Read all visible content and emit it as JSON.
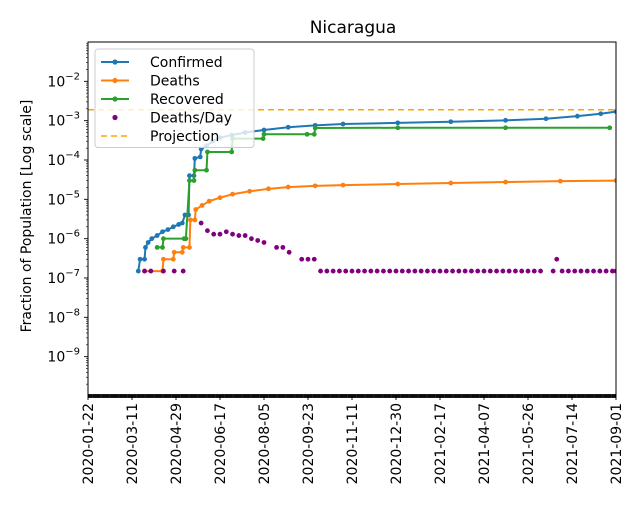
{
  "chart_data": {
    "type": "line",
    "title": "Nicaragua",
    "xlabel": "",
    "ylabel": "Fraction of Population [Log scale]",
    "yscale": "log",
    "ylim": [
      1e-10,
      0.1
    ],
    "xlim": [
      "2020-01-22",
      "2021-09-01"
    ],
    "y_ticks": [
      {
        "value": 1e-09,
        "base": "10",
        "exp": "−9"
      },
      {
        "value": 1e-08,
        "base": "10",
        "exp": "−8"
      },
      {
        "value": 1e-07,
        "base": "10",
        "exp": "−7"
      },
      {
        "value": 1e-06,
        "base": "10",
        "exp": "−6"
      },
      {
        "value": 1e-05,
        "base": "10",
        "exp": "−5"
      },
      {
        "value": 0.0001,
        "base": "10",
        "exp": "−4"
      },
      {
        "value": 0.001,
        "base": "10",
        "exp": "−3"
      },
      {
        "value": 0.01,
        "base": "10",
        "exp": "−2"
      }
    ],
    "x_ticks": [
      "2020-01-22",
      "2020-03-11",
      "2020-04-29",
      "2020-06-17",
      "2020-08-05",
      "2020-09-23",
      "2020-11-11",
      "2020-12-30",
      "2021-02-17",
      "2021-04-07",
      "2021-05-26",
      "2021-07-14",
      "2021-09-01"
    ],
    "legend": {
      "position": "top-left",
      "entries": [
        {
          "label": "Confirmed",
          "color": "#1f77b4",
          "style": "line-marker"
        },
        {
          "label": "Deaths",
          "color": "#ff7f0e",
          "style": "line-marker"
        },
        {
          "label": "Recovered",
          "color": "#2ca02c",
          "style": "line-marker"
        },
        {
          "label": "Deaths/Day",
          "color": "#800080",
          "style": "marker"
        },
        {
          "label": "Projection",
          "color": "#ffa500",
          "style": "dashed"
        }
      ]
    },
    "projection": {
      "name": "Projection",
      "value": 0.0019,
      "color": "#ffa500"
    },
    "series": [
      {
        "name": "Confirmed",
        "color": "#1f77b4",
        "points": [
          [
            "2020-03-18",
            1.5e-07
          ],
          [
            "2020-03-20",
            3e-07
          ],
          [
            "2020-03-25",
            3e-07
          ],
          [
            "2020-03-26",
            6e-07
          ],
          [
            "2020-03-29",
            8e-07
          ],
          [
            "2020-04-02",
            1e-06
          ],
          [
            "2020-04-08",
            1.2e-06
          ],
          [
            "2020-04-14",
            1.5e-06
          ],
          [
            "2020-04-20",
            1.7e-06
          ],
          [
            "2020-04-26",
            2e-06
          ],
          [
            "2020-05-02",
            2.3e-06
          ],
          [
            "2020-05-06",
            2.5e-06
          ],
          [
            "2020-05-09",
            4e-06
          ],
          [
            "2020-05-13",
            4e-06
          ],
          [
            "2020-05-14",
            4e-05
          ],
          [
            "2020-05-19",
            4e-05
          ],
          [
            "2020-05-20",
            0.00011
          ],
          [
            "2020-05-26",
            0.00012
          ],
          [
            "2020-05-27",
            0.00019
          ],
          [
            "2020-06-02",
            0.00023
          ],
          [
            "2020-06-09",
            0.0003
          ],
          [
            "2020-06-17",
            0.00037
          ],
          [
            "2020-06-30",
            0.00043
          ],
          [
            "2020-07-15",
            0.0005
          ],
          [
            "2020-08-05",
            0.00058
          ],
          [
            "2020-09-01",
            0.00068
          ],
          [
            "2020-10-01",
            0.00076
          ],
          [
            "2020-11-01",
            0.00082
          ],
          [
            "2021-01-01",
            0.00088
          ],
          [
            "2021-03-01",
            0.00094
          ],
          [
            "2021-05-01",
            0.00102
          ],
          [
            "2021-06-15",
            0.00112
          ],
          [
            "2021-07-20",
            0.0013
          ],
          [
            "2021-08-15",
            0.0015
          ],
          [
            "2021-09-01",
            0.0017
          ]
        ]
      },
      {
        "name": "Deaths",
        "color": "#ff7f0e",
        "points": [
          [
            "2020-03-25",
            1.5e-07
          ],
          [
            "2020-04-14",
            1.5e-07
          ],
          [
            "2020-04-15",
            3e-07
          ],
          [
            "2020-04-26",
            3e-07
          ],
          [
            "2020-04-27",
            4.5e-07
          ],
          [
            "2020-05-06",
            4.5e-07
          ],
          [
            "2020-05-07",
            6e-07
          ],
          [
            "2020-05-14",
            6e-07
          ],
          [
            "2020-05-15",
            3e-06
          ],
          [
            "2020-05-20",
            3e-06
          ],
          [
            "2020-05-21",
            5.5e-06
          ],
          [
            "2020-05-28",
            7e-06
          ],
          [
            "2020-06-05",
            9e-06
          ],
          [
            "2020-06-17",
            1.1e-05
          ],
          [
            "2020-07-01",
            1.35e-05
          ],
          [
            "2020-07-20",
            1.6e-05
          ],
          [
            "2020-08-10",
            1.85e-05
          ],
          [
            "2020-09-01",
            2.05e-05
          ],
          [
            "2020-10-01",
            2.2e-05
          ],
          [
            "2020-11-01",
            2.3e-05
          ],
          [
            "2021-01-01",
            2.45e-05
          ],
          [
            "2021-03-01",
            2.6e-05
          ],
          [
            "2021-05-01",
            2.75e-05
          ],
          [
            "2021-07-01",
            2.9e-05
          ],
          [
            "2021-09-01",
            3e-05
          ]
        ]
      },
      {
        "name": "Recovered",
        "color": "#2ca02c",
        "points": [
          [
            "2020-04-08",
            6e-07
          ],
          [
            "2020-04-14",
            6e-07
          ],
          [
            "2020-04-15",
            1e-06
          ],
          [
            "2020-05-08",
            1e-06
          ],
          [
            "2020-05-10",
            1e-06
          ],
          [
            "2020-05-14",
            3e-05
          ],
          [
            "2020-05-19",
            3e-05
          ],
          [
            "2020-05-20",
            5.5e-05
          ],
          [
            "2020-06-02",
            5.5e-05
          ],
          [
            "2020-06-03",
            0.00016
          ],
          [
            "2020-06-30",
            0.00016
          ],
          [
            "2020-07-01",
            0.00035
          ],
          [
            "2020-08-04",
            0.00035
          ],
          [
            "2020-08-05",
            0.00045
          ],
          [
            "2020-09-22",
            0.00045
          ],
          [
            "2020-09-30",
            0.00045
          ],
          [
            "2020-10-01",
            0.00065
          ],
          [
            "2021-01-01",
            0.00066
          ],
          [
            "2021-05-01",
            0.00066
          ],
          [
            "2021-08-25",
            0.00066
          ]
        ]
      },
      {
        "name": "Deaths/Day",
        "color": "#800080",
        "points": [
          [
            "2020-03-25",
            1.5e-07
          ],
          [
            "2020-04-01",
            1.5e-07
          ],
          [
            "2020-04-15",
            1.5e-07
          ],
          [
            "2020-04-27",
            1.5e-07
          ],
          [
            "2020-05-07",
            1.5e-07
          ],
          [
            "2020-05-27",
            2.5e-06
          ],
          [
            "2020-06-03",
            1.6e-06
          ],
          [
            "2020-06-10",
            1.3e-06
          ],
          [
            "2020-06-17",
            1.3e-06
          ],
          [
            "2020-06-24",
            1.5e-06
          ],
          [
            "2020-07-01",
            1.3e-06
          ],
          [
            "2020-07-08",
            1.2e-06
          ],
          [
            "2020-07-15",
            1.2e-06
          ],
          [
            "2020-07-22",
            1e-06
          ],
          [
            "2020-07-29",
            9e-07
          ],
          [
            "2020-08-05",
            8e-07
          ],
          [
            "2020-08-19",
            6e-07
          ],
          [
            "2020-08-26",
            6e-07
          ],
          [
            "2020-09-02",
            4.5e-07
          ],
          [
            "2020-09-16",
            3e-07
          ],
          [
            "2020-09-23",
            3e-07
          ],
          [
            "2020-09-30",
            3e-07
          ],
          [
            "2020-10-07",
            1.5e-07
          ],
          [
            "2020-10-14",
            1.5e-07
          ],
          [
            "2020-10-21",
            1.5e-07
          ],
          [
            "2020-10-28",
            1.5e-07
          ],
          [
            "2020-11-04",
            1.5e-07
          ],
          [
            "2020-11-11",
            1.5e-07
          ],
          [
            "2020-11-18",
            1.5e-07
          ],
          [
            "2020-11-25",
            1.5e-07
          ],
          [
            "2020-12-02",
            1.5e-07
          ],
          [
            "2020-12-09",
            1.5e-07
          ],
          [
            "2020-12-16",
            1.5e-07
          ],
          [
            "2020-12-23",
            1.5e-07
          ],
          [
            "2020-12-30",
            1.5e-07
          ],
          [
            "2021-01-06",
            1.5e-07
          ],
          [
            "2021-01-13",
            1.5e-07
          ],
          [
            "2021-01-20",
            1.5e-07
          ],
          [
            "2021-01-27",
            1.5e-07
          ],
          [
            "2021-02-03",
            1.5e-07
          ],
          [
            "2021-02-10",
            1.5e-07
          ],
          [
            "2021-02-17",
            1.5e-07
          ],
          [
            "2021-02-24",
            1.5e-07
          ],
          [
            "2021-03-03",
            1.5e-07
          ],
          [
            "2021-03-10",
            1.5e-07
          ],
          [
            "2021-03-17",
            1.5e-07
          ],
          [
            "2021-03-24",
            1.5e-07
          ],
          [
            "2021-03-31",
            1.5e-07
          ],
          [
            "2021-04-07",
            1.5e-07
          ],
          [
            "2021-04-14",
            1.5e-07
          ],
          [
            "2021-04-21",
            1.5e-07
          ],
          [
            "2021-04-28",
            1.5e-07
          ],
          [
            "2021-05-05",
            1.5e-07
          ],
          [
            "2021-05-12",
            1.5e-07
          ],
          [
            "2021-05-19",
            1.5e-07
          ],
          [
            "2021-05-26",
            1.5e-07
          ],
          [
            "2021-06-02",
            1.5e-07
          ],
          [
            "2021-06-09",
            1.5e-07
          ],
          [
            "2021-06-23",
            1.5e-07
          ],
          [
            "2021-06-27",
            3e-07
          ],
          [
            "2021-07-03",
            1.5e-07
          ],
          [
            "2021-07-10",
            1.5e-07
          ],
          [
            "2021-07-17",
            1.5e-07
          ],
          [
            "2021-07-24",
            1.5e-07
          ],
          [
            "2021-07-31",
            1.5e-07
          ],
          [
            "2021-08-07",
            1.5e-07
          ],
          [
            "2021-08-14",
            1.5e-07
          ],
          [
            "2021-08-21",
            1.5e-07
          ],
          [
            "2021-08-28",
            1.5e-07
          ],
          [
            "2021-09-01",
            1.5e-07
          ]
        ]
      }
    ]
  }
}
